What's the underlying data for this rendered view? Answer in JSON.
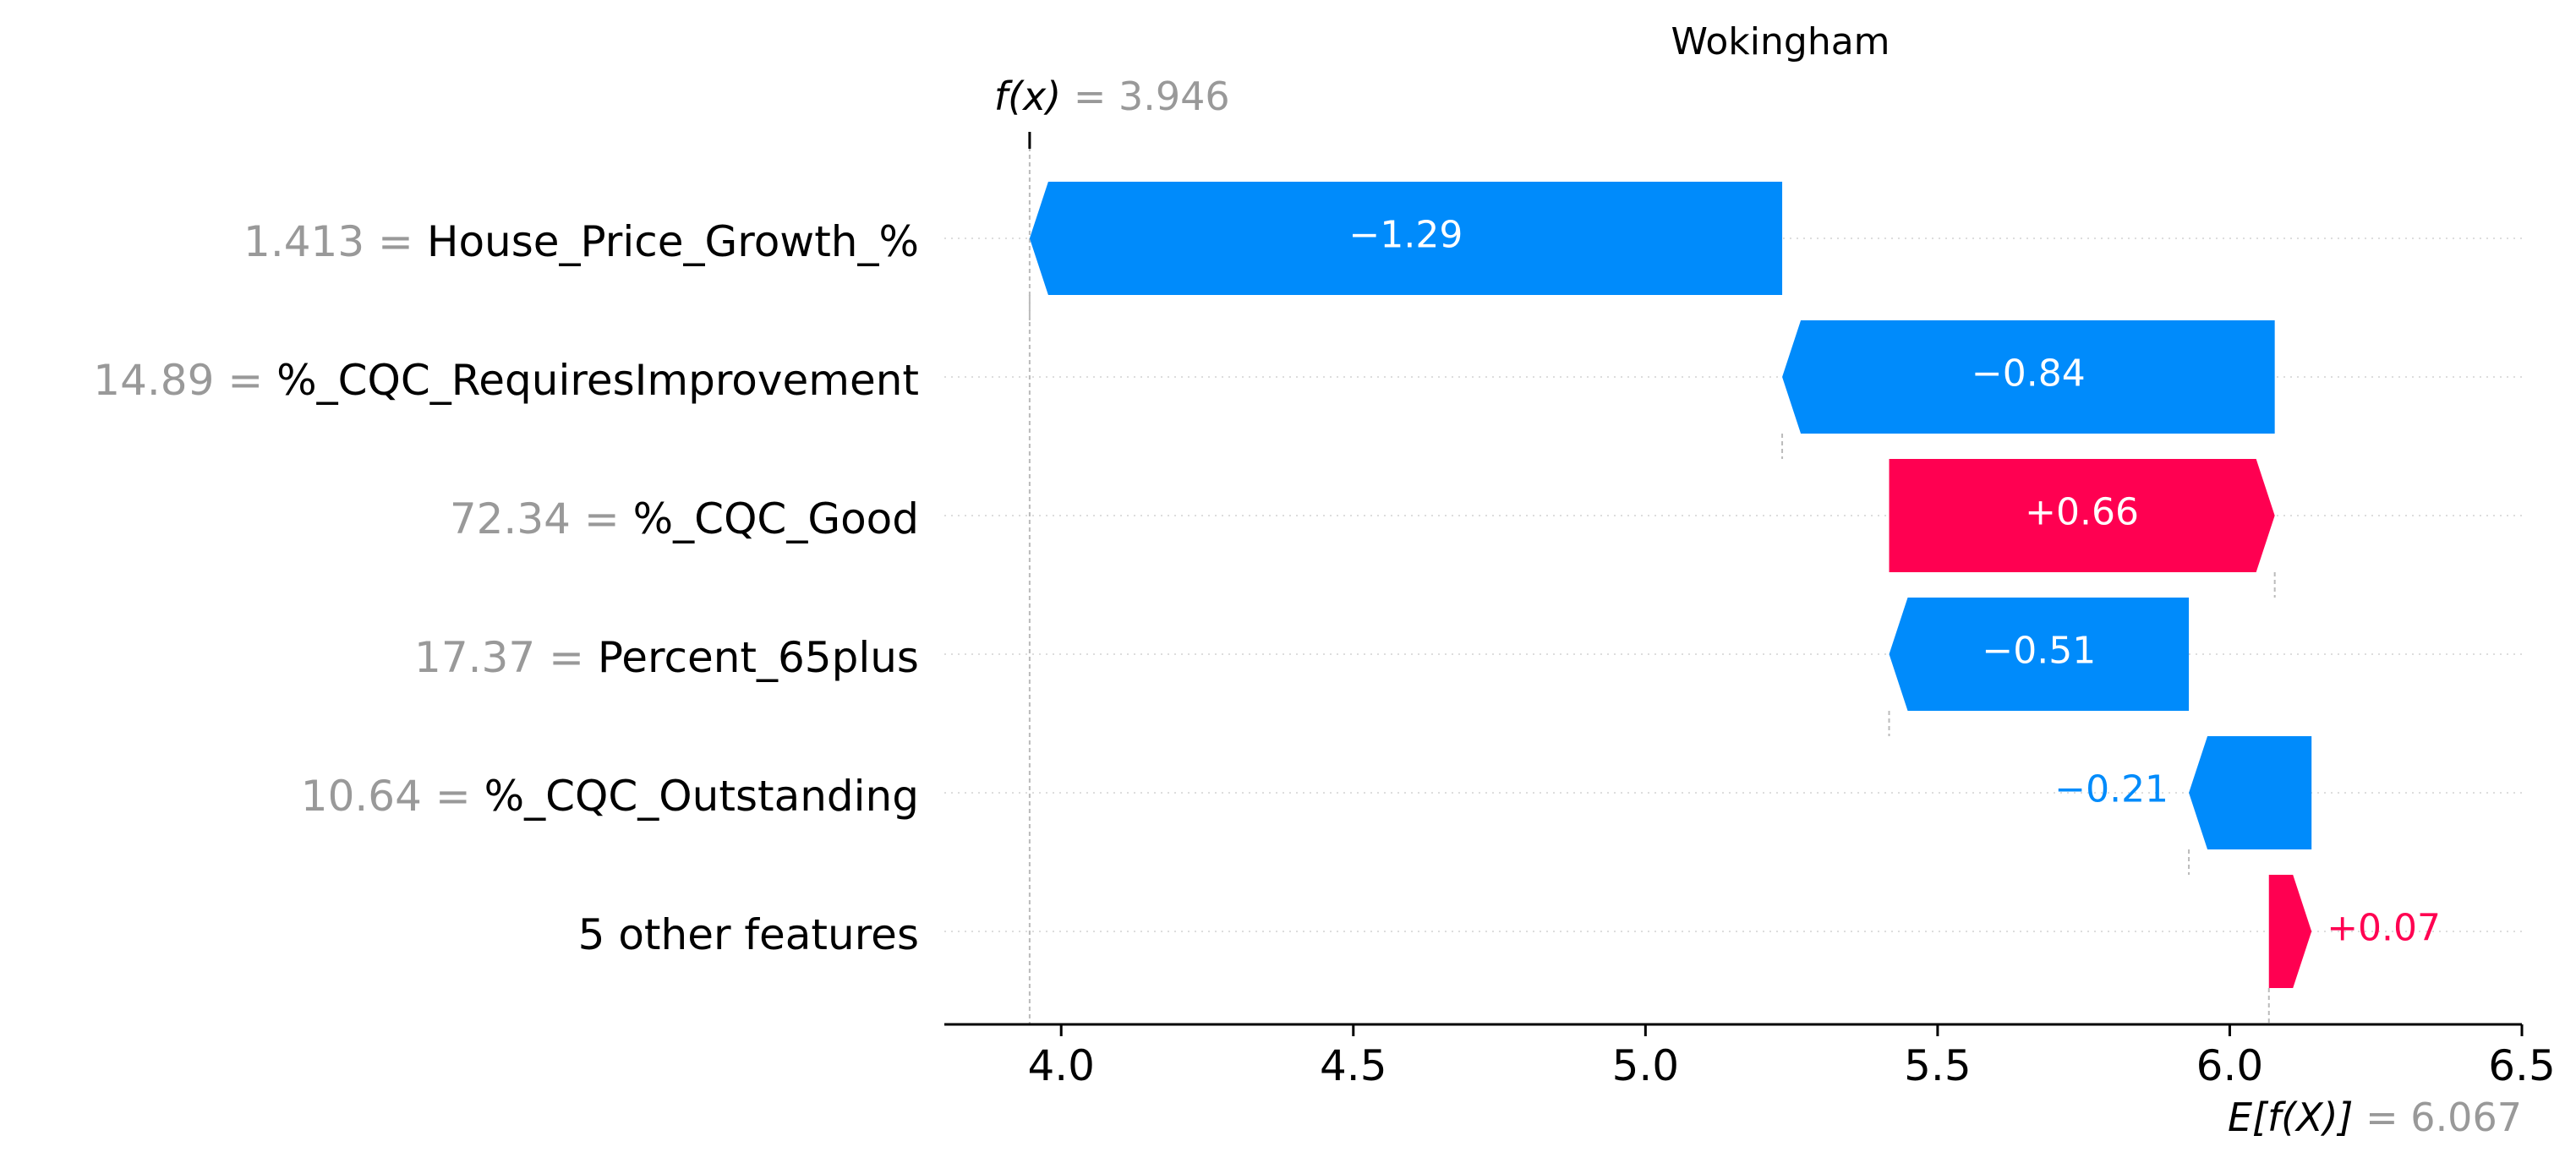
{
  "chart_data": {
    "type": "waterfall",
    "title": "Wokingham",
    "fx_label": "f(x)",
    "fx_value": "3.946",
    "efx_label": "E[f(X)]",
    "efx_value": "6.067",
    "base_value": 6.067,
    "final_value": 3.946,
    "xlim": [
      3.8,
      6.5
    ],
    "xticks": [
      "4.0",
      "4.5",
      "5.0",
      "5.5",
      "6.0",
      "6.5"
    ],
    "features": [
      {
        "value": "1.413",
        "name": "House_Price_Growth_%",
        "contribution": -1.29,
        "label": "−1.29",
        "start": 5.234,
        "end": 3.946
      },
      {
        "value": "14.89",
        "name": "%_CQC_RequiresImprovement",
        "contribution": -0.84,
        "label": "−0.84",
        "start": 6.077,
        "end": 5.234
      },
      {
        "value": "72.34",
        "name": "%_CQC_Good",
        "contribution": 0.66,
        "label": "+0.66",
        "start": 5.417,
        "end": 6.077
      },
      {
        "value": "17.37",
        "name": "Percent_65plus",
        "contribution": -0.51,
        "label": "−0.51",
        "start": 5.93,
        "end": 5.417
      },
      {
        "value": "10.64",
        "name": "%_CQC_Outstanding",
        "contribution": -0.21,
        "label": "−0.21",
        "start": 6.14,
        "end": 5.93
      },
      {
        "value": "",
        "name": "5 other features",
        "contribution": 0.07,
        "label": "+0.07",
        "start": 6.067,
        "end": 6.14
      }
    ],
    "colors": {
      "negative": "#008bfb",
      "positive": "#ff0051",
      "grey_text": "#999999",
      "text": "#000000",
      "guide": "#bbbbbb",
      "row_line": "#dddddd"
    }
  }
}
